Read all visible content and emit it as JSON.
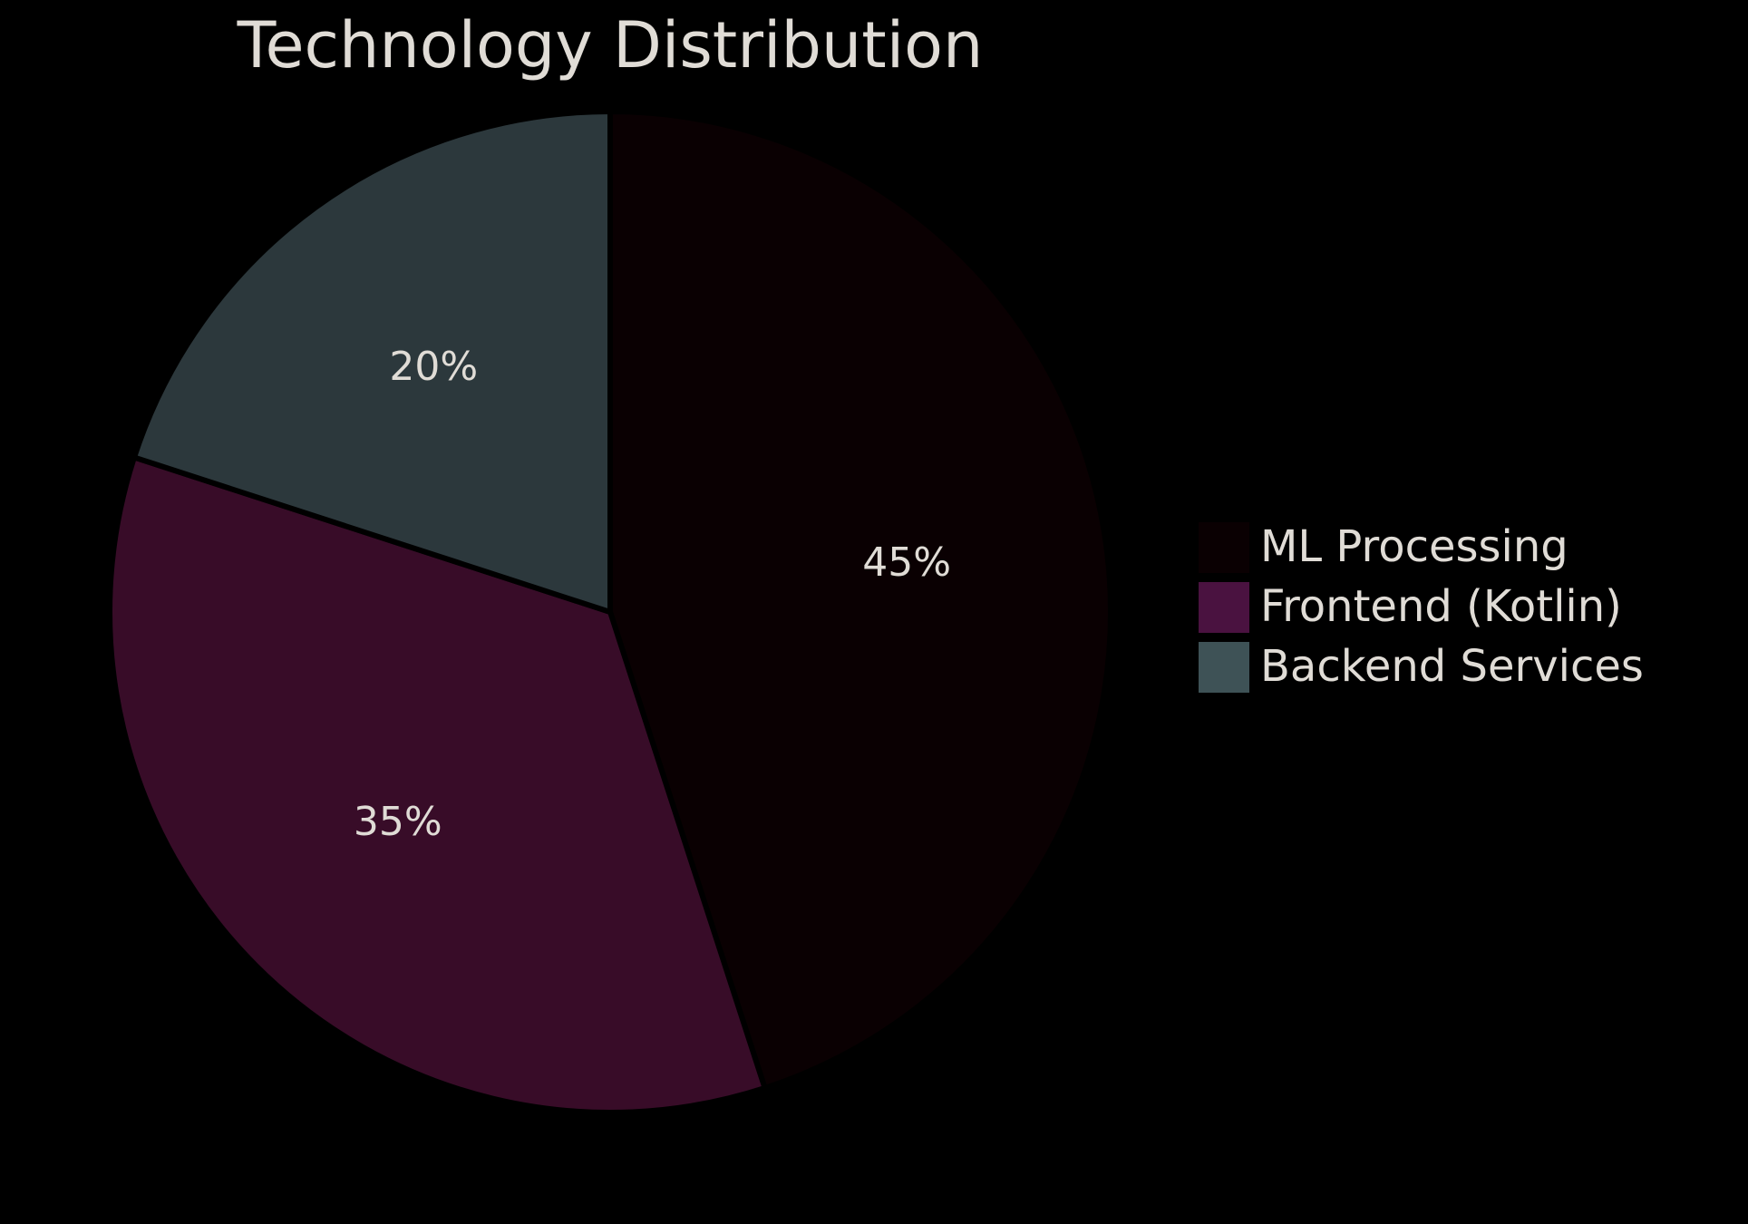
{
  "chart_data": {
    "type": "pie",
    "title": "Technology Distribution",
    "categories": [
      "ML Processing",
      "Frontend (Kotlin)",
      "Backend Services"
    ],
    "values": [
      45,
      35,
      20
    ],
    "labels": [
      "45%",
      "35%",
      "20%"
    ],
    "colors": [
      "#0a0002",
      "#380c28",
      "#2c383c"
    ],
    "legend_colors": [
      "#0a0002",
      "#4a1240",
      "#3e5256"
    ],
    "edge_color": "#000000",
    "start_angle_deg": 90,
    "direction": "clockwise",
    "legend_position": "right"
  }
}
